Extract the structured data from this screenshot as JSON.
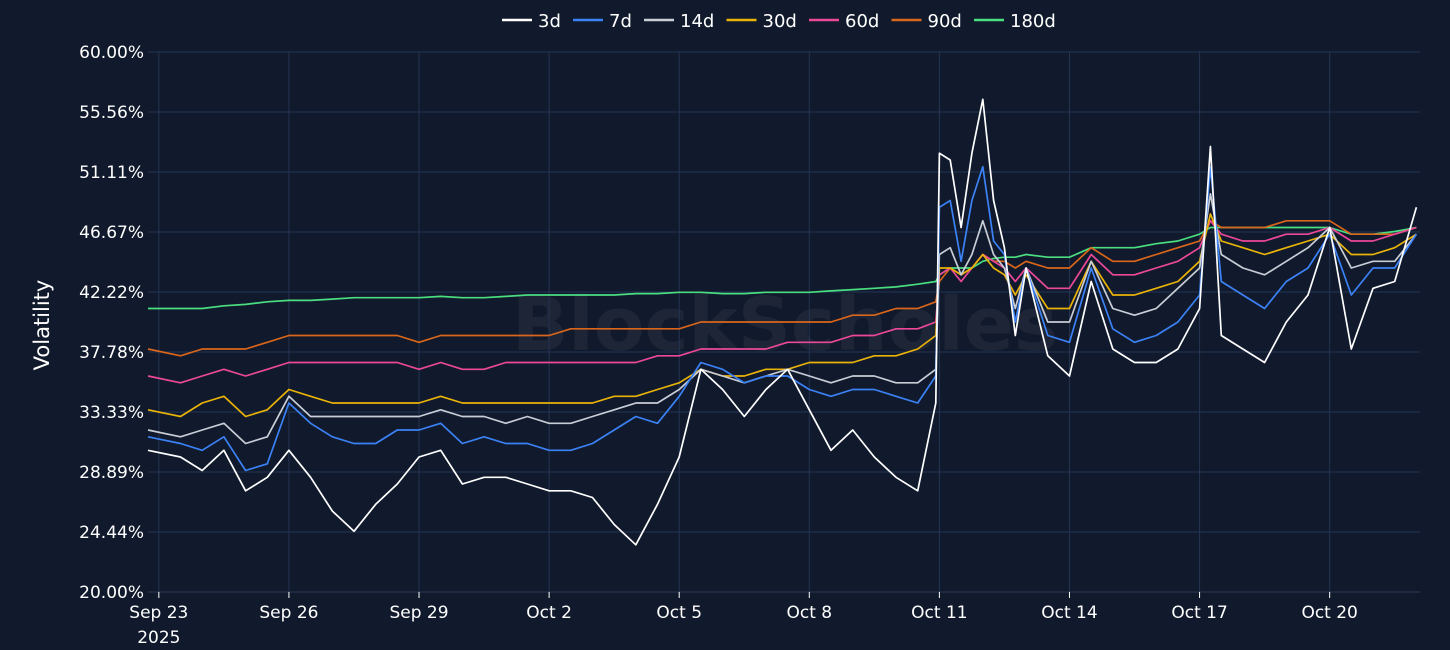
{
  "chart_data": {
    "type": "line",
    "title": "",
    "xlabel": "",
    "ylabel": "Volatility",
    "watermark": "BlockScholes",
    "legend_position": "top-center",
    "grid": true,
    "ylim": [
      0.2,
      0.6
    ],
    "xlim": [
      "2025-09-22T18:00",
      "2025-10-22T02:00"
    ],
    "y_ticks": [
      {
        "value": 0.2,
        "label": "20.00%"
      },
      {
        "value": 0.2444,
        "label": "24.44%"
      },
      {
        "value": 0.2889,
        "label": "28.89%"
      },
      {
        "value": 0.3333,
        "label": "33.33%"
      },
      {
        "value": 0.3778,
        "label": "37.78%"
      },
      {
        "value": 0.4222,
        "label": "42.22%"
      },
      {
        "value": 0.4667,
        "label": "46.67%"
      },
      {
        "value": 0.5111,
        "label": "51.11%"
      },
      {
        "value": 0.5556,
        "label": "55.56%"
      },
      {
        "value": 0.6,
        "label": "60.00%"
      }
    ],
    "x_ticks": [
      {
        "date": "2025-09-23",
        "label": "Sep 23",
        "sublabel": "2025"
      },
      {
        "date": "2025-09-26",
        "label": "Sep 26"
      },
      {
        "date": "2025-09-29",
        "label": "Sep 29"
      },
      {
        "date": "2025-10-02",
        "label": "Oct 2"
      },
      {
        "date": "2025-10-05",
        "label": "Oct 5"
      },
      {
        "date": "2025-10-08",
        "label": "Oct 8"
      },
      {
        "date": "2025-10-11",
        "label": "Oct 11"
      },
      {
        "date": "2025-10-14",
        "label": "Oct 14"
      },
      {
        "date": "2025-10-17",
        "label": "Oct 17"
      },
      {
        "date": "2025-10-20",
        "label": "Oct 20"
      }
    ],
    "x": [
      "2025-09-22T18:00",
      "2025-09-23T12:00",
      "2025-09-24T00:00",
      "2025-09-24T12:00",
      "2025-09-25T00:00",
      "2025-09-25T12:00",
      "2025-09-26T00:00",
      "2025-09-26T12:00",
      "2025-09-27T00:00",
      "2025-09-27T12:00",
      "2025-09-28T00:00",
      "2025-09-28T12:00",
      "2025-09-29T00:00",
      "2025-09-29T12:00",
      "2025-09-30T00:00",
      "2025-09-30T12:00",
      "2025-10-01T00:00",
      "2025-10-01T12:00",
      "2025-10-02T00:00",
      "2025-10-02T12:00",
      "2025-10-03T00:00",
      "2025-10-03T12:00",
      "2025-10-04T00:00",
      "2025-10-04T12:00",
      "2025-10-05T00:00",
      "2025-10-05T12:00",
      "2025-10-06T00:00",
      "2025-10-06T12:00",
      "2025-10-07T00:00",
      "2025-10-07T12:00",
      "2025-10-08T00:00",
      "2025-10-08T12:00",
      "2025-10-09T00:00",
      "2025-10-09T12:00",
      "2025-10-10T00:00",
      "2025-10-10T12:00",
      "2025-10-10T22:00",
      "2025-10-11T00:00",
      "2025-10-11T06:00",
      "2025-10-11T12:00",
      "2025-10-11T18:00",
      "2025-10-12T00:00",
      "2025-10-12T06:00",
      "2025-10-12T12:00",
      "2025-10-12T18:00",
      "2025-10-13T00:00",
      "2025-10-13T12:00",
      "2025-10-14T00:00",
      "2025-10-14T12:00",
      "2025-10-15T00:00",
      "2025-10-15T12:00",
      "2025-10-16T00:00",
      "2025-10-16T12:00",
      "2025-10-17T00:00",
      "2025-10-17T06:00",
      "2025-10-17T12:00",
      "2025-10-18T00:00",
      "2025-10-18T12:00",
      "2025-10-19T00:00",
      "2025-10-19T12:00",
      "2025-10-20T00:00",
      "2025-10-20T12:00",
      "2025-10-21T00:00",
      "2025-10-21T12:00",
      "2025-10-22T00:00"
    ],
    "series": [
      {
        "name": "3d",
        "color": "#ffffff",
        "values": [
          0.305,
          0.3,
          0.29,
          0.305,
          0.275,
          0.285,
          0.305,
          0.285,
          0.26,
          0.245,
          0.265,
          0.28,
          0.3,
          0.305,
          0.28,
          0.285,
          0.285,
          0.28,
          0.275,
          0.275,
          0.27,
          0.25,
          0.235,
          0.265,
          0.3,
          0.365,
          0.35,
          0.33,
          0.35,
          0.365,
          0.335,
          0.305,
          0.32,
          0.3,
          0.285,
          0.275,
          0.34,
          0.525,
          0.52,
          0.47,
          0.525,
          0.565,
          0.49,
          0.455,
          0.39,
          0.44,
          0.375,
          0.36,
          0.43,
          0.38,
          0.37,
          0.37,
          0.38,
          0.41,
          0.53,
          0.39,
          0.38,
          0.37,
          0.4,
          0.42,
          0.47,
          0.38,
          0.425,
          0.43,
          0.485
        ]
      },
      {
        "name": "7d",
        "color": "#3b82f6",
        "values": [
          0.315,
          0.31,
          0.305,
          0.315,
          0.29,
          0.295,
          0.34,
          0.325,
          0.315,
          0.31,
          0.31,
          0.32,
          0.32,
          0.325,
          0.31,
          0.315,
          0.31,
          0.31,
          0.305,
          0.305,
          0.31,
          0.32,
          0.33,
          0.325,
          0.345,
          0.37,
          0.365,
          0.355,
          0.36,
          0.36,
          0.35,
          0.345,
          0.35,
          0.35,
          0.345,
          0.34,
          0.36,
          0.485,
          0.49,
          0.445,
          0.49,
          0.515,
          0.46,
          0.45,
          0.4,
          0.44,
          0.39,
          0.385,
          0.44,
          0.395,
          0.385,
          0.39,
          0.4,
          0.42,
          0.515,
          0.43,
          0.42,
          0.41,
          0.43,
          0.44,
          0.465,
          0.42,
          0.44,
          0.44,
          0.465
        ]
      },
      {
        "name": "14d",
        "color": "#c8cdd6",
        "values": [
          0.32,
          0.315,
          0.32,
          0.325,
          0.31,
          0.315,
          0.345,
          0.33,
          0.33,
          0.33,
          0.33,
          0.33,
          0.33,
          0.335,
          0.33,
          0.33,
          0.325,
          0.33,
          0.325,
          0.325,
          0.33,
          0.335,
          0.34,
          0.34,
          0.35,
          0.365,
          0.36,
          0.355,
          0.36,
          0.365,
          0.36,
          0.355,
          0.36,
          0.36,
          0.355,
          0.355,
          0.365,
          0.45,
          0.455,
          0.435,
          0.45,
          0.475,
          0.45,
          0.44,
          0.41,
          0.44,
          0.4,
          0.4,
          0.445,
          0.41,
          0.405,
          0.41,
          0.425,
          0.44,
          0.495,
          0.45,
          0.44,
          0.435,
          0.445,
          0.455,
          0.47,
          0.44,
          0.445,
          0.445,
          0.465
        ]
      },
      {
        "name": "30d",
        "color": "#eab308",
        "values": [
          0.335,
          0.33,
          0.34,
          0.345,
          0.33,
          0.335,
          0.35,
          0.345,
          0.34,
          0.34,
          0.34,
          0.34,
          0.34,
          0.345,
          0.34,
          0.34,
          0.34,
          0.34,
          0.34,
          0.34,
          0.34,
          0.345,
          0.345,
          0.35,
          0.355,
          0.365,
          0.36,
          0.36,
          0.365,
          0.365,
          0.37,
          0.37,
          0.37,
          0.375,
          0.375,
          0.38,
          0.39,
          0.44,
          0.44,
          0.435,
          0.44,
          0.45,
          0.44,
          0.435,
          0.42,
          0.435,
          0.41,
          0.41,
          0.445,
          0.42,
          0.42,
          0.425,
          0.43,
          0.445,
          0.48,
          0.46,
          0.455,
          0.45,
          0.455,
          0.46,
          0.465,
          0.45,
          0.45,
          0.455,
          0.465
        ]
      },
      {
        "name": "60d",
        "color": "#ec4899",
        "values": [
          0.36,
          0.355,
          0.36,
          0.365,
          0.36,
          0.365,
          0.37,
          0.37,
          0.37,
          0.37,
          0.37,
          0.37,
          0.365,
          0.37,
          0.365,
          0.365,
          0.37,
          0.37,
          0.37,
          0.37,
          0.37,
          0.37,
          0.37,
          0.375,
          0.375,
          0.38,
          0.38,
          0.38,
          0.38,
          0.385,
          0.385,
          0.385,
          0.39,
          0.39,
          0.395,
          0.395,
          0.4,
          0.435,
          0.44,
          0.43,
          0.44,
          0.45,
          0.445,
          0.44,
          0.43,
          0.44,
          0.425,
          0.425,
          0.45,
          0.435,
          0.435,
          0.44,
          0.445,
          0.455,
          0.475,
          0.465,
          0.46,
          0.46,
          0.465,
          0.465,
          0.47,
          0.46,
          0.46,
          0.465,
          0.47
        ]
      },
      {
        "name": "90d",
        "color": "#d9661a",
        "values": [
          0.38,
          0.375,
          0.38,
          0.38,
          0.38,
          0.385,
          0.39,
          0.39,
          0.39,
          0.39,
          0.39,
          0.39,
          0.385,
          0.39,
          0.39,
          0.39,
          0.39,
          0.39,
          0.39,
          0.395,
          0.395,
          0.395,
          0.395,
          0.395,
          0.395,
          0.4,
          0.4,
          0.4,
          0.4,
          0.4,
          0.4,
          0.4,
          0.405,
          0.405,
          0.41,
          0.41,
          0.415,
          0.43,
          0.44,
          0.435,
          0.44,
          0.45,
          0.445,
          0.445,
          0.44,
          0.445,
          0.44,
          0.44,
          0.455,
          0.445,
          0.445,
          0.45,
          0.455,
          0.46,
          0.475,
          0.47,
          0.47,
          0.47,
          0.475,
          0.475,
          0.475,
          0.465,
          0.465,
          0.465,
          0.47
        ]
      },
      {
        "name": "180d",
        "color": "#4ade80",
        "values": [
          0.41,
          0.41,
          0.41,
          0.412,
          0.413,
          0.415,
          0.416,
          0.416,
          0.417,
          0.418,
          0.418,
          0.418,
          0.418,
          0.419,
          0.418,
          0.418,
          0.419,
          0.42,
          0.42,
          0.42,
          0.42,
          0.42,
          0.421,
          0.421,
          0.422,
          0.422,
          0.421,
          0.421,
          0.422,
          0.422,
          0.422,
          0.423,
          0.424,
          0.425,
          0.426,
          0.428,
          0.43,
          0.435,
          0.44,
          0.44,
          0.44,
          0.445,
          0.447,
          0.448,
          0.448,
          0.45,
          0.448,
          0.448,
          0.455,
          0.455,
          0.455,
          0.458,
          0.46,
          0.465,
          0.47,
          0.47,
          0.47,
          0.47,
          0.47,
          0.47,
          0.47,
          0.465,
          0.465,
          0.467,
          0.47
        ]
      }
    ]
  }
}
